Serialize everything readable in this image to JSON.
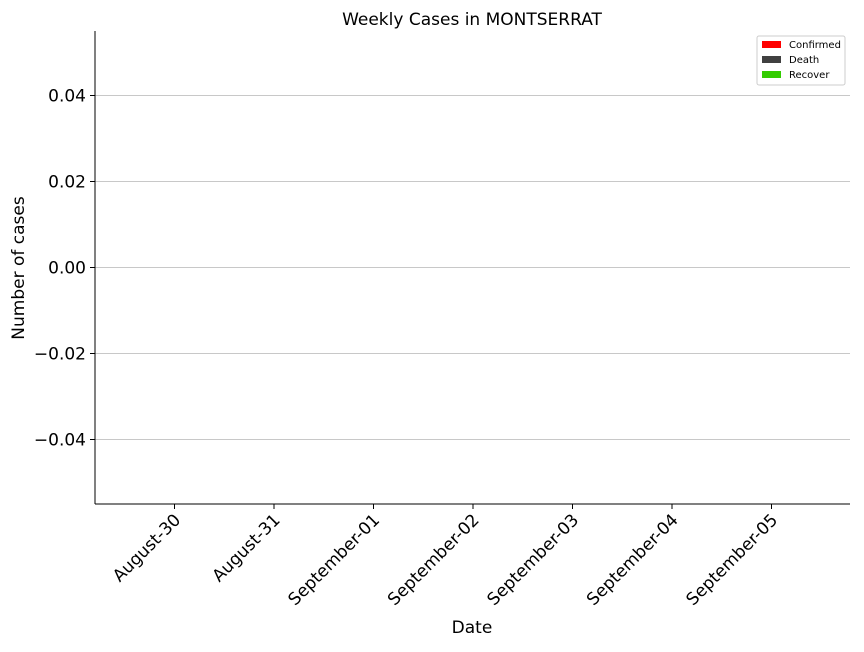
{
  "chart_data": {
    "type": "bar",
    "title": "Weekly Cases in MONTSERRAT",
    "xlabel": "Date",
    "ylabel": "Number of cases",
    "categories": [
      "August-30",
      "August-31",
      "September-01",
      "September-02",
      "September-03",
      "September-04",
      "September-05"
    ],
    "series": [
      {
        "name": "Confirmed",
        "color": "#ff0000",
        "values": [
          0,
          0,
          0,
          0,
          0,
          0,
          0
        ]
      },
      {
        "name": "Death",
        "color": "#404040",
        "values": [
          0,
          0,
          0,
          0,
          0,
          0,
          0
        ]
      },
      {
        "name": "Recover",
        "color": "#33cc00",
        "values": [
          0,
          0,
          0,
          0,
          0,
          0,
          0
        ]
      }
    ],
    "ylim": [
      -0.055,
      0.055
    ],
    "yticks": [
      0.04,
      0.02,
      0.0,
      -0.02,
      -0.04
    ],
    "ytick_labels": [
      "0.04",
      "0.02",
      "0.00",
      "−0.02",
      "−0.04"
    ],
    "grid": "horizontal",
    "legend_position": "top-right"
  }
}
